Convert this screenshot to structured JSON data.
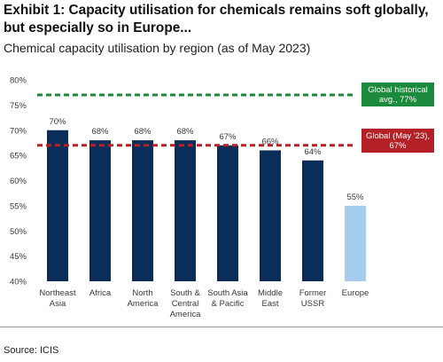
{
  "header": {
    "title_line1": "Exhibit 1: Capacity utilisation for chemicals remains soft globally,",
    "title_line2": "but especially so in Europe...",
    "subtitle": "Chemical capacity utilisation by region (as of May 2023)"
  },
  "footer": {
    "source": "Source: ICIS"
  },
  "colors": {
    "bar_dark": "#0b2d59",
    "bar_light": "#a6cdee",
    "historical_line": "#1b8a3c",
    "current_line": "#b32025"
  },
  "chart_data": {
    "type": "bar",
    "categories": [
      [
        "Northeast",
        "Asia"
      ],
      [
        "Africa"
      ],
      [
        "North",
        "America"
      ],
      [
        "South &",
        "Central",
        "America"
      ],
      [
        "South Asia",
        "& Pacific"
      ],
      [
        "Middle",
        "East"
      ],
      [
        "Former",
        "USSR"
      ],
      [
        "Europe"
      ]
    ],
    "values": [
      70,
      68,
      68,
      68,
      67,
      66,
      64,
      55
    ],
    "data_labels": [
      "70%",
      "68%",
      "68%",
      "68%",
      "67%",
      "66%",
      "64%",
      "55%"
    ],
    "highlight_index": 7,
    "ylim": [
      40,
      80
    ],
    "yticks": [
      40,
      45,
      50,
      55,
      60,
      65,
      70,
      75,
      80
    ],
    "ytick_labels": [
      "40%",
      "45%",
      "50%",
      "55%",
      "60%",
      "65%",
      "70%",
      "75%",
      "80%"
    ],
    "grid": false,
    "reference_lines": [
      {
        "value": 77,
        "label_lines": [
          "Global historical",
          "avg., 77%"
        ],
        "style": "dashed",
        "color": "#1b8a3c"
      },
      {
        "value": 67,
        "label_lines": [
          "Global (May '23),",
          "67%"
        ],
        "style": "dashed",
        "color": "#b32025"
      }
    ]
  }
}
